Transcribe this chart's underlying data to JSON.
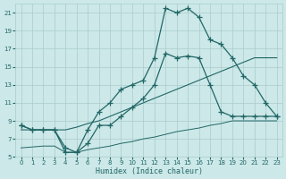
{
  "xlabel": "Humidex (Indice chaleur)",
  "xlim": [
    -0.5,
    23.5
  ],
  "ylim": [
    5,
    22
  ],
  "xticks": [
    0,
    1,
    2,
    3,
    4,
    5,
    6,
    7,
    8,
    9,
    10,
    11,
    12,
    13,
    14,
    15,
    16,
    17,
    18,
    19,
    20,
    21,
    22,
    23
  ],
  "yticks": [
    5,
    7,
    9,
    11,
    13,
    15,
    17,
    19,
    21
  ],
  "bg_color": "#cce8e8",
  "grid_color": "#aacccc",
  "line_color": "#226666",
  "line_max": {
    "x": [
      0,
      1,
      2,
      3,
      4,
      5,
      6,
      7,
      8,
      9,
      10,
      11,
      12,
      13,
      14,
      15,
      16,
      17,
      18,
      19,
      20,
      21,
      22,
      23
    ],
    "y": [
      8.5,
      8.0,
      8.0,
      8.0,
      5.5,
      5.5,
      8.0,
      10.0,
      11.0,
      12.5,
      13.0,
      13.5,
      16.0,
      21.5,
      21.0,
      21.5,
      20.5,
      18.0,
      17.5,
      16.0,
      14.0,
      13.0,
      11.0,
      9.5
    ]
  },
  "line_med": {
    "x": [
      0,
      1,
      2,
      3,
      4,
      5,
      6,
      7,
      8,
      9,
      10,
      11,
      12,
      13,
      14,
      15,
      16,
      17,
      18,
      19,
      20,
      21,
      22,
      23
    ],
    "y": [
      8.5,
      8.0,
      8.0,
      8.0,
      6.0,
      5.5,
      6.5,
      8.5,
      8.5,
      9.5,
      10.5,
      11.5,
      13.0,
      16.5,
      16.0,
      16.2,
      16.0,
      13.0,
      10.0,
      9.5,
      9.5,
      9.5,
      9.5,
      9.5
    ]
  },
  "line_diag": {
    "x": [
      0,
      4,
      5,
      6,
      7,
      8,
      9,
      10,
      11,
      12,
      13,
      14,
      15,
      16,
      17,
      18,
      19,
      20,
      21,
      22,
      23
    ],
    "y": [
      8.0,
      8.0,
      8.3,
      8.7,
      9.0,
      9.5,
      10.0,
      10.5,
      11.0,
      11.5,
      12.0,
      12.5,
      13.0,
      13.5,
      14.0,
      14.5,
      15.0,
      15.5,
      16.0,
      16.0,
      16.0
    ]
  },
  "line_flat": {
    "x": [
      0,
      1,
      2,
      3,
      4,
      5,
      6,
      7,
      8,
      9,
      10,
      11,
      12,
      13,
      14,
      15,
      16,
      17,
      18,
      19,
      20,
      21,
      22,
      23
    ],
    "y": [
      6.0,
      6.1,
      6.2,
      6.2,
      5.5,
      5.5,
      5.8,
      6.0,
      6.2,
      6.5,
      6.7,
      7.0,
      7.2,
      7.5,
      7.8,
      8.0,
      8.2,
      8.5,
      8.7,
      9.0,
      9.0,
      9.0,
      9.0,
      9.0
    ]
  }
}
